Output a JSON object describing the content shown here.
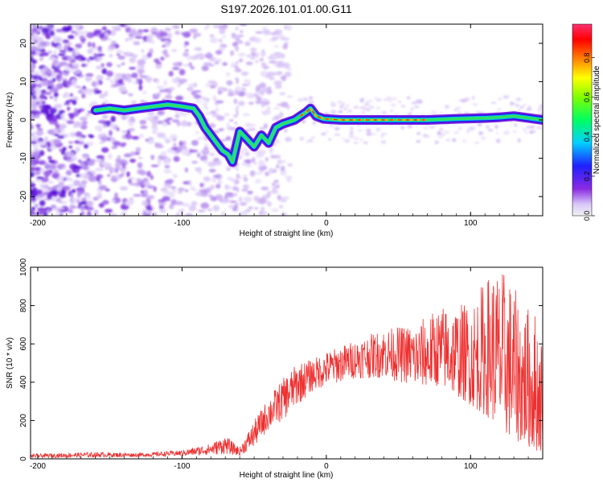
{
  "title": "S197.2026.101.01.00.G11",
  "chart_data": [
    {
      "type": "heatmap",
      "title": "S197.2026.101.01.00.G11",
      "xlabel": "Height of straight line (km)",
      "ylabel": "Frequency (Hz)",
      "xlim": [
        -205,
        150
      ],
      "ylim": [
        -25,
        25
      ],
      "xticks": [
        -200,
        -100,
        0,
        100
      ],
      "yticks": [
        -20,
        -10,
        0,
        10,
        20
      ],
      "colorbar": {
        "label": "Normalized spectral amplitude",
        "range": [
          0,
          1
        ],
        "ticks": [
          0.0,
          0.2,
          0.4,
          0.6,
          0.8
        ]
      },
      "ridge": [
        {
          "x": -160,
          "y": 2.5
        },
        {
          "x": -150,
          "y": 3
        },
        {
          "x": -140,
          "y": 2.5
        },
        {
          "x": -130,
          "y": 3
        },
        {
          "x": -120,
          "y": 3.5
        },
        {
          "x": -110,
          "y": 4
        },
        {
          "x": -100,
          "y": 3.5
        },
        {
          "x": -92,
          "y": 3
        },
        {
          "x": -88,
          "y": 1
        },
        {
          "x": -84,
          "y": -2
        },
        {
          "x": -80,
          "y": -4
        },
        {
          "x": -76,
          "y": -6
        },
        {
          "x": -72,
          "y": -8
        },
        {
          "x": -68,
          "y": -9
        },
        {
          "x": -65,
          "y": -11
        },
        {
          "x": -60,
          "y": -3
        },
        {
          "x": -55,
          "y": -5
        },
        {
          "x": -50,
          "y": -7
        },
        {
          "x": -45,
          "y": -4
        },
        {
          "x": -40,
          "y": -6
        },
        {
          "x": -35,
          "y": -2
        },
        {
          "x": -30,
          "y": -1
        },
        {
          "x": -22,
          "y": 0
        },
        {
          "x": -18,
          "y": 1
        },
        {
          "x": -14,
          "y": 2
        },
        {
          "x": -11,
          "y": 3
        },
        {
          "x": -7,
          "y": 1
        },
        {
          "x": -2,
          "y": 0.3
        },
        {
          "x": 10,
          "y": 0
        },
        {
          "x": 30,
          "y": 0
        },
        {
          "x": 50,
          "y": 0
        },
        {
          "x": 70,
          "y": 0
        },
        {
          "x": 90,
          "y": 0.3
        },
        {
          "x": 110,
          "y": 0.5
        },
        {
          "x": 120,
          "y": 0.7
        },
        {
          "x": 130,
          "y": 1
        },
        {
          "x": 140,
          "y": 0.5
        },
        {
          "x": 150,
          "y": 0
        }
      ]
    },
    {
      "type": "line",
      "xlabel": "Height of straight line (km)",
      "ylabel": "SNR (10 * v/v)",
      "xlim": [
        -205,
        150
      ],
      "ylim": [
        0,
        1000
      ],
      "xticks": [
        -200,
        -100,
        0,
        100
      ],
      "yticks": [
        0,
        200,
        400,
        600,
        800,
        1000
      ],
      "series_color": "#ee3030",
      "envelope": [
        {
          "x": -205,
          "low": 5,
          "high": 25
        },
        {
          "x": -160,
          "low": 8,
          "high": 35
        },
        {
          "x": -130,
          "low": 10,
          "high": 30
        },
        {
          "x": -100,
          "low": 15,
          "high": 45
        },
        {
          "x": -80,
          "low": 20,
          "high": 80
        },
        {
          "x": -70,
          "low": 25,
          "high": 120
        },
        {
          "x": -60,
          "low": 15,
          "high": 60
        },
        {
          "x": -50,
          "low": 60,
          "high": 200
        },
        {
          "x": -40,
          "low": 150,
          "high": 320
        },
        {
          "x": -30,
          "low": 200,
          "high": 420
        },
        {
          "x": -20,
          "low": 280,
          "high": 500
        },
        {
          "x": -10,
          "low": 350,
          "high": 520
        },
        {
          "x": 0,
          "low": 380,
          "high": 560
        },
        {
          "x": 20,
          "low": 420,
          "high": 620
        },
        {
          "x": 40,
          "low": 420,
          "high": 680
        },
        {
          "x": 60,
          "low": 380,
          "high": 700
        },
        {
          "x": 80,
          "low": 380,
          "high": 800
        },
        {
          "x": 100,
          "low": 280,
          "high": 820
        },
        {
          "x": 115,
          "low": 200,
          "high": 1000
        },
        {
          "x": 125,
          "low": 120,
          "high": 980
        },
        {
          "x": 135,
          "low": 80,
          "high": 820
        },
        {
          "x": 145,
          "low": 40,
          "high": 780
        },
        {
          "x": 150,
          "low": 30,
          "high": 620
        }
      ]
    }
  ]
}
